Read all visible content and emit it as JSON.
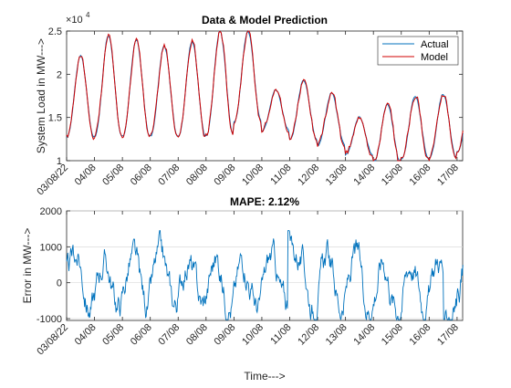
{
  "chart_data": [
    {
      "type": "line",
      "title": "Data & Model Prediction",
      "xlabel": "",
      "ylabel": "System Load in MW--->",
      "exponent_label": "×10",
      "exponent_power": "4",
      "ylim": [
        1,
        2.5
      ],
      "yticks": [
        1,
        1.5,
        2,
        2.5
      ],
      "ytick_labels": [
        "1",
        "1.5",
        "2",
        "2.5"
      ],
      "xlim": [
        0,
        14.2
      ],
      "xtick_labels": [
        "03/08/22",
        "04/08",
        "05/08",
        "06/08",
        "07/08",
        "08/08",
        "09/08",
        "10/08",
        "11/08",
        "12/08",
        "13/08",
        "14/08",
        "15/08",
        "16/08",
        "17/08"
      ],
      "legend_position": "top-right",
      "grid": false,
      "colors": {
        "actual": "#0072BD",
        "model": "#D00000"
      },
      "day_profile": {
        "days": [
          "03/08/22",
          "04/08",
          "05/08",
          "06/08",
          "07/08",
          "08/08",
          "09/08",
          "10/08",
          "11/08",
          "12/08",
          "13/08",
          "14/08",
          "15/08",
          "16/08",
          "17/08"
        ],
        "daily_min": [
          1.27,
          1.28,
          1.28,
          1.28,
          1.28,
          1.29,
          1.45,
          1.35,
          1.24,
          1.18,
          1.07,
          0.97,
          1.02,
          1.03,
          1.1
        ],
        "daily_max": [
          2.22,
          2.45,
          2.4,
          2.33,
          2.38,
          2.5,
          2.5,
          1.82,
          1.93,
          1.78,
          1.5,
          1.65,
          1.75,
          1.77,
          1.77
        ]
      },
      "series": [
        {
          "name": "Actual",
          "color": "#0072BD"
        },
        {
          "name": "Model",
          "color": "#D00000"
        }
      ]
    },
    {
      "type": "line",
      "title": "MAPE: 2.12%",
      "xlabel": "Time--->",
      "ylabel": "Error in MW--->",
      "ylim": [
        -1050,
        2000
      ],
      "yticks": [
        -1000,
        0,
        1000,
        2000
      ],
      "ytick_labels": [
        "-1000",
        "0",
        "1000",
        "2000"
      ],
      "xlim": [
        0,
        14.2
      ],
      "xtick_labels": [
        "03/08/22",
        "04/08",
        "05/08",
        "06/08",
        "07/08",
        "08/08",
        "09/08",
        "10/08",
        "11/08",
        "12/08",
        "13/08",
        "14/08",
        "15/08",
        "16/08",
        "17/08"
      ],
      "grid": true,
      "color": "#0072BD",
      "error_extremes": {
        "max": {
          "x": 7.95,
          "y": 1450
        },
        "min": {
          "x": 13.55,
          "y": -1020
        }
      }
    }
  ]
}
